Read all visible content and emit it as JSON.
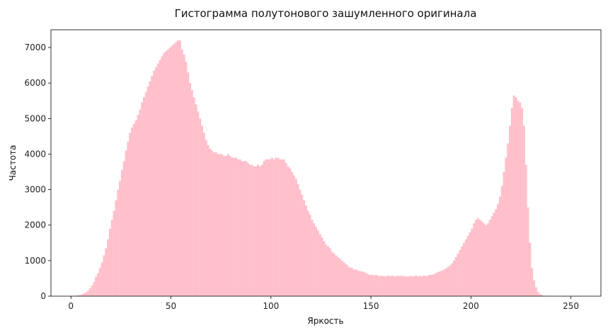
{
  "chart_data": {
    "type": "bar",
    "subtype": "histogram",
    "title": "Гистограмма полутонового зашумленного оригинала",
    "xlabel": "Яркость",
    "ylabel": "Частота",
    "xlim": [
      -10,
      265
    ],
    "ylim": [
      0,
      7500
    ],
    "xticks": [
      0,
      50,
      100,
      150,
      200,
      250
    ],
    "yticks": [
      0,
      1000,
      2000,
      3000,
      4000,
      5000,
      6000,
      7000
    ],
    "bar_color": "#ffc0cb",
    "bin_width": 1,
    "bins_start": 0,
    "values": [
      0,
      0,
      10,
      20,
      30,
      50,
      80,
      100,
      150,
      220,
      300,
      400,
      550,
      650,
      800,
      950,
      1150,
      1350,
      1600,
      1900,
      2150,
      2400,
      2700,
      3000,
      3250,
      3550,
      3800,
      4100,
      4350,
      4600,
      4750,
      4850,
      4950,
      5100,
      5250,
      5450,
      5600,
      5750,
      5900,
      6050,
      6200,
      6350,
      6450,
      6550,
      6650,
      6750,
      6850,
      6900,
      6950,
      7000,
      7050,
      7100,
      7150,
      7200,
      7200,
      6950,
      6800,
      6600,
      6300,
      6000,
      5800,
      5600,
      5400,
      5200,
      5000,
      4800,
      4600,
      4400,
      4250,
      4150,
      4100,
      4050,
      4050,
      4000,
      4000,
      4000,
      3950,
      3950,
      4000,
      3950,
      3900,
      3900,
      3900,
      3850,
      3850,
      3800,
      3800,
      3800,
      3750,
      3700,
      3700,
      3650,
      3650,
      3700,
      3650,
      3700,
      3800,
      3850,
      3850,
      3850,
      3900,
      3850,
      3900,
      3900,
      3850,
      3850,
      3850,
      3750,
      3650,
      3600,
      3500,
      3400,
      3300,
      3150,
      3000,
      2850,
      2700,
      2550,
      2400,
      2300,
      2150,
      2050,
      1950,
      1850,
      1750,
      1650,
      1550,
      1450,
      1400,
      1350,
      1250,
      1200,
      1150,
      1100,
      1050,
      1000,
      950,
      900,
      850,
      800,
      800,
      750,
      750,
      720,
      700,
      700,
      680,
      650,
      620,
      600,
      600,
      580,
      600,
      580,
      560,
      580,
      560,
      560,
      580,
      560,
      580,
      560,
      560,
      580,
      560,
      580,
      560,
      560,
      550,
      570,
      560,
      560,
      580,
      560,
      570,
      560,
      580,
      560,
      580,
      600,
      600,
      620,
      650,
      680,
      700,
      720,
      750,
      780,
      820,
      860,
      920,
      1000,
      1100,
      1200,
      1300,
      1400,
      1500,
      1600,
      1700,
      1800,
      1900,
      2050,
      2150,
      2200,
      2150,
      2100,
      2050,
      2000,
      2050,
      2150,
      2250,
      2350,
      2450,
      2600,
      2800,
      3100,
      3500,
      3900,
      4300,
      4800,
      5300,
      5650,
      5600,
      5500,
      5450,
      5300,
      4800,
      3700,
      2500,
      1500,
      800,
      450,
      250,
      120,
      60,
      30,
      10,
      0,
      0,
      0,
      0,
      0,
      0,
      0,
      0,
      0
    ]
  }
}
